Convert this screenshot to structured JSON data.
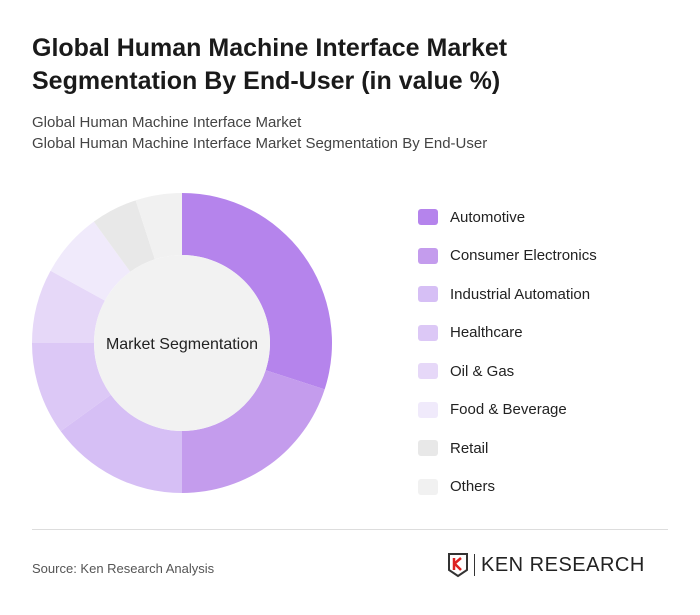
{
  "title": "Global Human Machine Interface Market Segmentation By End-User (in value %)",
  "subtitle1": "Global Human Machine Interface Market",
  "subtitle2": "Global Human Machine Interface Market Segmentation By End-User",
  "source": "Source: Ken Research Analysis",
  "logo_text": "KEN RESEARCH",
  "chart_data": {
    "type": "pie",
    "variant": "donut",
    "center_label": "Market Segmentation",
    "legend_position": "right",
    "categories": [
      "Automotive",
      "Consumer Electronics",
      "Industrial Automation",
      "Healthcare",
      "Oil & Gas",
      "Food & Beverage",
      "Retail",
      "Others"
    ],
    "values": [
      30,
      20,
      15,
      10,
      8,
      7,
      5,
      5
    ],
    "colors": [
      "#b584ec",
      "#c49ced",
      "#d6bff5",
      "#dcc8f6",
      "#e6d8f8",
      "#f0eafb",
      "#e8e8e8",
      "#f1f1f1"
    ]
  }
}
